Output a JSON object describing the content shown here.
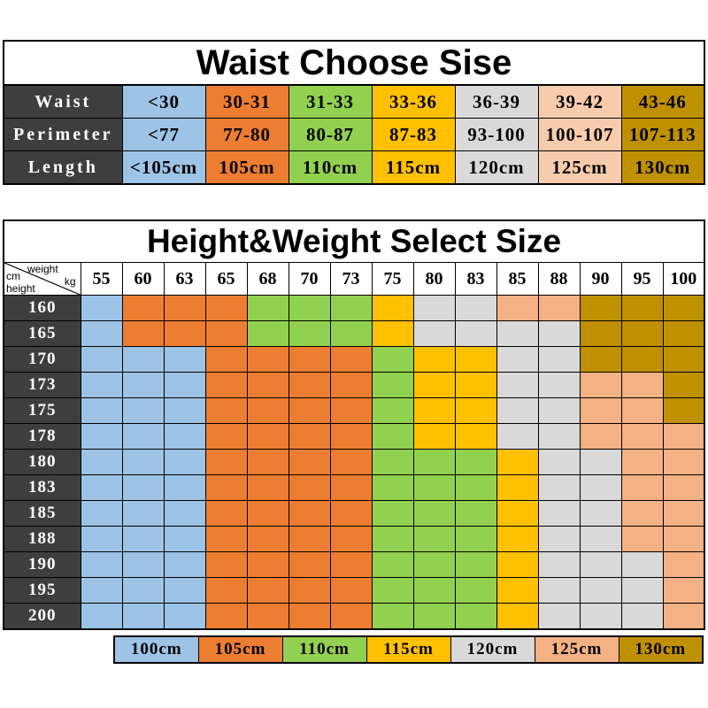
{
  "colors": {
    "blue": "#9dc3e6",
    "orange": "#ed7d31",
    "green": "#92d050",
    "yellow": "#ffc000",
    "gray": "#d9d9d9",
    "peach": "#f4b183",
    "peach_light": "#f8cbad",
    "gold": "#bf9000",
    "header_dark": "#3e3e3e"
  },
  "waist_table": {
    "title": "Waist Choose Sise",
    "rows": [
      {
        "label": "Waist",
        "cells": [
          {
            "text": "<30",
            "color": "blue"
          },
          {
            "text": "30-31",
            "color": "orange"
          },
          {
            "text": "31-33",
            "color": "green"
          },
          {
            "text": "33-36",
            "color": "yellow"
          },
          {
            "text": "36-39",
            "color": "gray"
          },
          {
            "text": "39-42",
            "color": "peach_light"
          },
          {
            "text": "43-46",
            "color": "gold"
          }
        ]
      },
      {
        "label": "Perimeter",
        "cells": [
          {
            "text": "<77",
            "color": "blue"
          },
          {
            "text": "77-80",
            "color": "orange"
          },
          {
            "text": "80-87",
            "color": "green"
          },
          {
            "text": "87-83",
            "color": "yellow"
          },
          {
            "text": "93-100",
            "color": "gray"
          },
          {
            "text": "100-107",
            "color": "peach_light"
          },
          {
            "text": "107-113",
            "color": "gold"
          }
        ]
      },
      {
        "label": "Length",
        "cells": [
          {
            "text": "<105cm",
            "color": "blue"
          },
          {
            "text": "105cm",
            "color": "orange"
          },
          {
            "text": "110cm",
            "color": "green"
          },
          {
            "text": "115cm",
            "color": "yellow"
          },
          {
            "text": "120cm",
            "color": "gray"
          },
          {
            "text": "125cm",
            "color": "peach_light"
          },
          {
            "text": "130cm",
            "color": "gold"
          }
        ]
      }
    ]
  },
  "size_table": {
    "title": "Height&Weight Select Size",
    "corner": {
      "cm": "cm",
      "weight": "weight",
      "height": "height",
      "kg": "kg"
    },
    "weights": [
      "55",
      "60",
      "63",
      "65",
      "68",
      "70",
      "73",
      "75",
      "80",
      "83",
      "85",
      "88",
      "90",
      "95",
      "100"
    ],
    "rows": [
      {
        "height": "160",
        "cells": [
          "blue",
          "orange",
          "orange",
          "orange",
          "green",
          "green",
          "green",
          "yellow",
          "gray",
          "gray",
          "peach",
          "peach",
          "gold",
          "gold",
          "gold"
        ]
      },
      {
        "height": "165",
        "cells": [
          "blue",
          "orange",
          "orange",
          "orange",
          "green",
          "green",
          "green",
          "yellow",
          "gray",
          "gray",
          "gray",
          "gray",
          "gold",
          "gold",
          "gold"
        ]
      },
      {
        "height": "170",
        "cells": [
          "blue",
          "blue",
          "blue",
          "orange",
          "orange",
          "orange",
          "orange",
          "green",
          "yellow",
          "yellow",
          "gray",
          "gray",
          "gold",
          "gold",
          "gold"
        ]
      },
      {
        "height": "173",
        "cells": [
          "blue",
          "blue",
          "blue",
          "orange",
          "orange",
          "orange",
          "orange",
          "green",
          "yellow",
          "yellow",
          "gray",
          "gray",
          "peach",
          "peach",
          "gold"
        ]
      },
      {
        "height": "175",
        "cells": [
          "blue",
          "blue",
          "blue",
          "orange",
          "orange",
          "orange",
          "orange",
          "green",
          "yellow",
          "yellow",
          "gray",
          "gray",
          "peach",
          "peach",
          "gold"
        ]
      },
      {
        "height": "178",
        "cells": [
          "blue",
          "blue",
          "blue",
          "orange",
          "orange",
          "orange",
          "orange",
          "green",
          "yellow",
          "yellow",
          "gray",
          "gray",
          "peach",
          "peach",
          "peach"
        ]
      },
      {
        "height": "180",
        "cells": [
          "blue",
          "blue",
          "blue",
          "orange",
          "orange",
          "orange",
          "orange",
          "green",
          "green",
          "green",
          "yellow",
          "gray",
          "gray",
          "peach",
          "peach"
        ]
      },
      {
        "height": "183",
        "cells": [
          "blue",
          "blue",
          "blue",
          "orange",
          "orange",
          "orange",
          "orange",
          "green",
          "green",
          "green",
          "yellow",
          "gray",
          "gray",
          "peach",
          "peach"
        ]
      },
      {
        "height": "185",
        "cells": [
          "blue",
          "blue",
          "blue",
          "orange",
          "orange",
          "orange",
          "orange",
          "green",
          "green",
          "green",
          "yellow",
          "gray",
          "gray",
          "peach",
          "peach"
        ]
      },
      {
        "height": "188",
        "cells": [
          "blue",
          "blue",
          "blue",
          "orange",
          "orange",
          "orange",
          "orange",
          "green",
          "green",
          "green",
          "yellow",
          "gray",
          "gray",
          "peach",
          "peach"
        ]
      },
      {
        "height": "190",
        "cells": [
          "blue",
          "blue",
          "blue",
          "orange",
          "orange",
          "orange",
          "orange",
          "green",
          "green",
          "green",
          "yellow",
          "gray",
          "gray",
          "gray",
          "peach"
        ]
      },
      {
        "height": "195",
        "cells": [
          "blue",
          "blue",
          "blue",
          "orange",
          "orange",
          "orange",
          "orange",
          "green",
          "green",
          "green",
          "yellow",
          "gray",
          "gray",
          "gray",
          "peach"
        ]
      },
      {
        "height": "200",
        "cells": [
          "blue",
          "blue",
          "blue",
          "orange",
          "orange",
          "orange",
          "orange",
          "green",
          "green",
          "green",
          "yellow",
          "gray",
          "gray",
          "gray",
          "peach"
        ]
      }
    ]
  },
  "legend": [
    {
      "label": "100cm",
      "color": "blue"
    },
    {
      "label": "105cm",
      "color": "orange"
    },
    {
      "label": "110cm",
      "color": "green"
    },
    {
      "label": "115cm",
      "color": "yellow"
    },
    {
      "label": "120cm",
      "color": "gray"
    },
    {
      "label": "125cm",
      "color": "peach"
    },
    {
      "label": "130cm",
      "color": "gold"
    }
  ]
}
